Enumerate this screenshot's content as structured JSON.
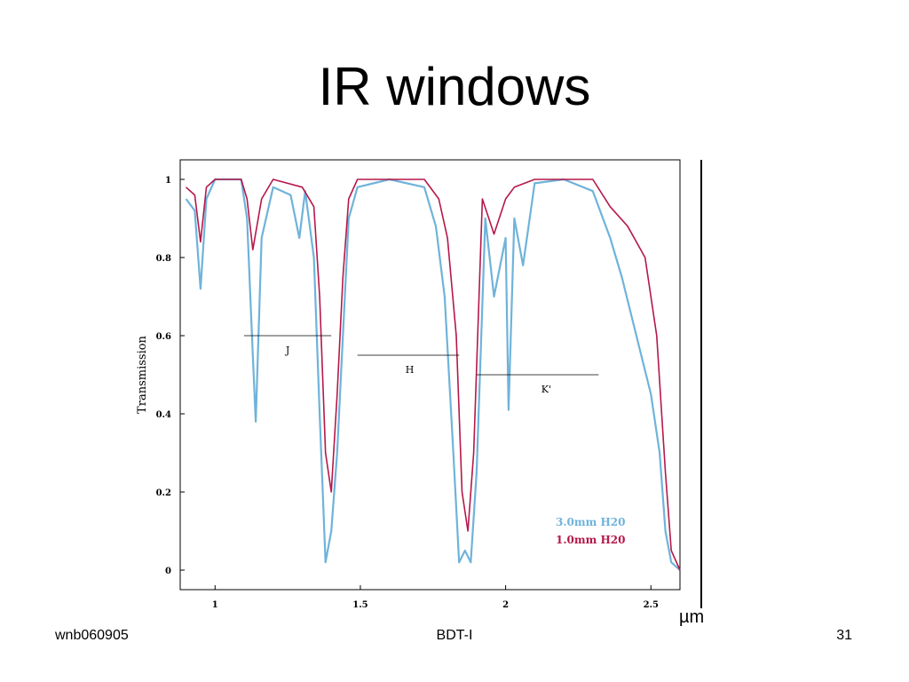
{
  "slide": {
    "title": "IR windows",
    "footer_left": "wnb060905",
    "footer_center": "BDT-I",
    "footer_right": "31",
    "unit_label": "µm"
  },
  "chart_data": {
    "type": "line",
    "ylabel": "Transmission",
    "xlim": [
      0.88,
      2.6
    ],
    "ylim": [
      -0.05,
      1.05
    ],
    "xticks": [
      1,
      1.5,
      2,
      2.5
    ],
    "xtick_labels": [
      "1",
      "1.5",
      "2",
      "2.5"
    ],
    "yticks": [
      0,
      0.2,
      0.4,
      0.6,
      0.8,
      1
    ],
    "ytick_labels": [
      "0",
      "0.2",
      "0.4",
      "0.6",
      "0.8",
      "1"
    ],
    "grid": false,
    "legend_position": "bottom-right",
    "series": [
      {
        "name": "3.0mm H20",
        "color": "#6fb3da",
        "points": [
          [
            0.9,
            0.95
          ],
          [
            0.93,
            0.92
          ],
          [
            0.95,
            0.72
          ],
          [
            0.97,
            0.95
          ],
          [
            1.0,
            1.0
          ],
          [
            1.09,
            1.0
          ],
          [
            1.11,
            0.9
          ],
          [
            1.13,
            0.55
          ],
          [
            1.14,
            0.38
          ],
          [
            1.16,
            0.85
          ],
          [
            1.2,
            0.98
          ],
          [
            1.26,
            0.96
          ],
          [
            1.29,
            0.85
          ],
          [
            1.31,
            0.97
          ],
          [
            1.34,
            0.8
          ],
          [
            1.36,
            0.4
          ],
          [
            1.38,
            0.02
          ],
          [
            1.4,
            0.1
          ],
          [
            1.42,
            0.3
          ],
          [
            1.44,
            0.6
          ],
          [
            1.46,
            0.9
          ],
          [
            1.49,
            0.98
          ],
          [
            1.6,
            1.0
          ],
          [
            1.72,
            0.98
          ],
          [
            1.76,
            0.88
          ],
          [
            1.79,
            0.7
          ],
          [
            1.82,
            0.3
          ],
          [
            1.84,
            0.02
          ],
          [
            1.86,
            0.05
          ],
          [
            1.88,
            0.02
          ],
          [
            1.9,
            0.25
          ],
          [
            1.93,
            0.9
          ],
          [
            1.96,
            0.7
          ],
          [
            2.0,
            0.85
          ],
          [
            2.01,
            0.41
          ],
          [
            2.03,
            0.9
          ],
          [
            2.06,
            0.78
          ],
          [
            2.1,
            0.99
          ],
          [
            2.2,
            1.0
          ],
          [
            2.3,
            0.97
          ],
          [
            2.36,
            0.85
          ],
          [
            2.4,
            0.75
          ],
          [
            2.45,
            0.6
          ],
          [
            2.5,
            0.45
          ],
          [
            2.53,
            0.3
          ],
          [
            2.55,
            0.1
          ],
          [
            2.57,
            0.02
          ],
          [
            2.6,
            0.0
          ]
        ]
      },
      {
        "name": "1.0mm H20",
        "color": "#b5184a",
        "points": [
          [
            0.9,
            0.98
          ],
          [
            0.93,
            0.96
          ],
          [
            0.95,
            0.84
          ],
          [
            0.97,
            0.98
          ],
          [
            1.0,
            1.0
          ],
          [
            1.09,
            1.0
          ],
          [
            1.11,
            0.95
          ],
          [
            1.13,
            0.82
          ],
          [
            1.16,
            0.95
          ],
          [
            1.2,
            1.0
          ],
          [
            1.3,
            0.98
          ],
          [
            1.34,
            0.93
          ],
          [
            1.36,
            0.7
          ],
          [
            1.38,
            0.3
          ],
          [
            1.4,
            0.2
          ],
          [
            1.42,
            0.45
          ],
          [
            1.44,
            0.75
          ],
          [
            1.46,
            0.95
          ],
          [
            1.49,
            1.0
          ],
          [
            1.72,
            1.0
          ],
          [
            1.77,
            0.95
          ],
          [
            1.8,
            0.85
          ],
          [
            1.83,
            0.6
          ],
          [
            1.85,
            0.2
          ],
          [
            1.87,
            0.1
          ],
          [
            1.89,
            0.3
          ],
          [
            1.92,
            0.95
          ],
          [
            1.96,
            0.86
          ],
          [
            2.0,
            0.95
          ],
          [
            2.03,
            0.98
          ],
          [
            2.1,
            1.0
          ],
          [
            2.3,
            1.0
          ],
          [
            2.36,
            0.93
          ],
          [
            2.42,
            0.88
          ],
          [
            2.48,
            0.8
          ],
          [
            2.52,
            0.6
          ],
          [
            2.55,
            0.25
          ],
          [
            2.57,
            0.05
          ],
          [
            2.6,
            0.0
          ]
        ]
      }
    ],
    "annotations": [
      {
        "label": "J",
        "x0": 1.1,
        "x1": 1.4,
        "y": 0.6,
        "label_x": 1.25,
        "label_y": 0.555
      },
      {
        "label": "H",
        "x0": 1.49,
        "x1": 1.84,
        "y": 0.55,
        "label_x": 1.67,
        "label_y": 0.505
      },
      {
        "label": "K'",
        "x0": 1.9,
        "x1": 2.32,
        "y": 0.5,
        "label_x": 2.14,
        "label_y": 0.455
      }
    ]
  }
}
